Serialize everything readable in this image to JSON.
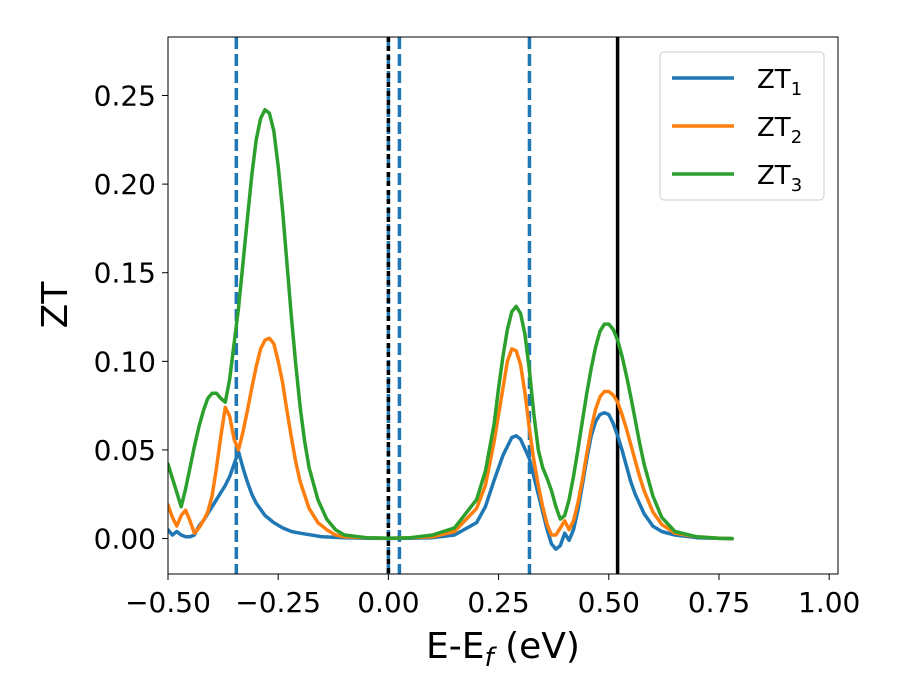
{
  "chart_data": {
    "type": "line",
    "title": "",
    "xlabel": "E-E",
    "xlabel_sub": "f",
    "xlabel_unit": " (eV)",
    "ylabel": "ZT",
    "xlim": [
      -0.5,
      1.02
    ],
    "ylim": [
      -0.02,
      0.283
    ],
    "grid": false,
    "legend_position": "top-right",
    "xticks": [
      -0.5,
      -0.25,
      0.0,
      0.25,
      0.5,
      0.75,
      1.0
    ],
    "xtick_labels": [
      "−0.50",
      "−0.25",
      "0.00",
      "0.25",
      "0.50",
      "0.75",
      "1.00"
    ],
    "yticks": [
      0.0,
      0.05,
      0.1,
      0.15,
      0.2,
      0.25
    ],
    "ytick_labels": [
      "0.00",
      "0.05",
      "0.10",
      "0.15",
      "0.20",
      "0.25"
    ],
    "series": [
      {
        "name": "ZT",
        "name_sub": "1",
        "color": "#1f77b4",
        "x": [
          -0.5,
          -0.49,
          -0.48,
          -0.47,
          -0.46,
          -0.45,
          -0.44,
          -0.43,
          -0.42,
          -0.41,
          -0.4,
          -0.39,
          -0.38,
          -0.37,
          -0.36,
          -0.35,
          -0.34,
          -0.33,
          -0.32,
          -0.31,
          -0.3,
          -0.28,
          -0.26,
          -0.24,
          -0.22,
          -0.2,
          -0.15,
          -0.1,
          -0.05,
          0.0,
          0.05,
          0.1,
          0.15,
          0.2,
          0.22,
          0.24,
          0.26,
          0.28,
          0.29,
          0.3,
          0.32,
          0.34,
          0.35,
          0.36,
          0.37,
          0.38,
          0.39,
          0.4,
          0.41,
          0.42,
          0.43,
          0.44,
          0.45,
          0.46,
          0.47,
          0.48,
          0.49,
          0.5,
          0.51,
          0.52,
          0.53,
          0.54,
          0.55,
          0.56,
          0.58,
          0.6,
          0.62,
          0.65,
          0.7,
          0.75,
          0.78
        ],
        "y": [
          0.005,
          0.002,
          0.004,
          0.002,
          0.001,
          0.001,
          0.002,
          0.007,
          0.01,
          0.014,
          0.018,
          0.022,
          0.026,
          0.03,
          0.035,
          0.042,
          0.049,
          0.04,
          0.032,
          0.025,
          0.02,
          0.013,
          0.009,
          0.006,
          0.004,
          0.003,
          0.001,
          0.0005,
          0.0002,
          0.0001,
          0.0002,
          0.0005,
          0.002,
          0.009,
          0.018,
          0.033,
          0.047,
          0.057,
          0.058,
          0.056,
          0.045,
          0.025,
          0.015,
          0.005,
          -0.003,
          -0.006,
          -0.004,
          0.003,
          -0.001,
          0.005,
          0.016,
          0.03,
          0.045,
          0.058,
          0.066,
          0.07,
          0.071,
          0.07,
          0.065,
          0.058,
          0.05,
          0.041,
          0.032,
          0.025,
          0.014,
          0.007,
          0.004,
          0.002,
          0.0005,
          0.0001,
          0.0
        ]
      },
      {
        "name": "ZT",
        "name_sub": "2",
        "color": "#ff7f0e",
        "x": [
          -0.5,
          -0.49,
          -0.48,
          -0.47,
          -0.46,
          -0.45,
          -0.44,
          -0.43,
          -0.42,
          -0.41,
          -0.4,
          -0.39,
          -0.38,
          -0.37,
          -0.36,
          -0.35,
          -0.34,
          -0.33,
          -0.32,
          -0.31,
          -0.3,
          -0.29,
          -0.28,
          -0.27,
          -0.26,
          -0.25,
          -0.24,
          -0.23,
          -0.22,
          -0.21,
          -0.2,
          -0.18,
          -0.16,
          -0.14,
          -0.12,
          -0.1,
          -0.05,
          0.0,
          0.05,
          0.1,
          0.15,
          0.2,
          0.22,
          0.24,
          0.26,
          0.27,
          0.28,
          0.29,
          0.3,
          0.31,
          0.32,
          0.33,
          0.34,
          0.35,
          0.36,
          0.37,
          0.38,
          0.39,
          0.4,
          0.41,
          0.42,
          0.43,
          0.44,
          0.45,
          0.46,
          0.47,
          0.48,
          0.49,
          0.5,
          0.51,
          0.52,
          0.53,
          0.54,
          0.55,
          0.56,
          0.57,
          0.58,
          0.6,
          0.62,
          0.65,
          0.7,
          0.75,
          0.78
        ],
        "y": [
          0.019,
          0.012,
          0.007,
          0.013,
          0.016,
          0.01,
          0.003,
          0.006,
          0.01,
          0.015,
          0.024,
          0.04,
          0.058,
          0.074,
          0.069,
          0.056,
          0.05,
          0.06,
          0.072,
          0.085,
          0.097,
          0.107,
          0.112,
          0.113,
          0.11,
          0.1,
          0.088,
          0.072,
          0.057,
          0.043,
          0.032,
          0.017,
          0.009,
          0.005,
          0.002,
          0.001,
          0.0004,
          0.0002,
          0.0004,
          0.001,
          0.004,
          0.017,
          0.03,
          0.055,
          0.085,
          0.1,
          0.107,
          0.106,
          0.098,
          0.082,
          0.062,
          0.044,
          0.03,
          0.018,
          0.008,
          0.002,
          0.002,
          0.006,
          0.01,
          0.005,
          0.01,
          0.02,
          0.033,
          0.048,
          0.062,
          0.073,
          0.08,
          0.083,
          0.083,
          0.081,
          0.077,
          0.07,
          0.062,
          0.053,
          0.044,
          0.035,
          0.027,
          0.015,
          0.008,
          0.003,
          0.001,
          0.0002,
          0.0
        ]
      },
      {
        "name": "ZT",
        "name_sub": "3",
        "color": "#2ca02c",
        "x": [
          -0.5,
          -0.49,
          -0.48,
          -0.47,
          -0.46,
          -0.45,
          -0.44,
          -0.43,
          -0.42,
          -0.41,
          -0.4,
          -0.39,
          -0.38,
          -0.37,
          -0.36,
          -0.35,
          -0.34,
          -0.33,
          -0.32,
          -0.31,
          -0.3,
          -0.29,
          -0.28,
          -0.27,
          -0.26,
          -0.25,
          -0.24,
          -0.23,
          -0.22,
          -0.21,
          -0.2,
          -0.19,
          -0.18,
          -0.16,
          -0.14,
          -0.12,
          -0.1,
          -0.05,
          0.0,
          0.05,
          0.1,
          0.15,
          0.2,
          0.22,
          0.24,
          0.25,
          0.26,
          0.27,
          0.28,
          0.29,
          0.3,
          0.31,
          0.32,
          0.33,
          0.34,
          0.35,
          0.36,
          0.37,
          0.38,
          0.39,
          0.4,
          0.41,
          0.42,
          0.43,
          0.44,
          0.45,
          0.46,
          0.47,
          0.48,
          0.49,
          0.5,
          0.51,
          0.52,
          0.53,
          0.54,
          0.55,
          0.56,
          0.57,
          0.58,
          0.6,
          0.62,
          0.65,
          0.7,
          0.75,
          0.78
        ],
        "y": [
          0.042,
          0.034,
          0.026,
          0.018,
          0.028,
          0.04,
          0.052,
          0.063,
          0.072,
          0.079,
          0.082,
          0.082,
          0.079,
          0.077,
          0.09,
          0.11,
          0.13,
          0.155,
          0.18,
          0.205,
          0.225,
          0.237,
          0.242,
          0.24,
          0.23,
          0.21,
          0.185,
          0.155,
          0.125,
          0.098,
          0.074,
          0.055,
          0.04,
          0.022,
          0.011,
          0.005,
          0.002,
          0.0005,
          0.0002,
          0.0005,
          0.002,
          0.006,
          0.022,
          0.038,
          0.065,
          0.085,
          0.103,
          0.118,
          0.128,
          0.131,
          0.127,
          0.115,
          0.095,
          0.07,
          0.05,
          0.04,
          0.034,
          0.027,
          0.018,
          0.011,
          0.013,
          0.022,
          0.035,
          0.05,
          0.066,
          0.082,
          0.096,
          0.108,
          0.117,
          0.121,
          0.121,
          0.118,
          0.112,
          0.103,
          0.092,
          0.08,
          0.067,
          0.054,
          0.042,
          0.024,
          0.012,
          0.004,
          0.001,
          0.0002,
          0.0
        ]
      }
    ],
    "vlines": [
      {
        "x": -0.345,
        "color": "#1f77b4",
        "style": "dashed"
      },
      {
        "x": 0.0,
        "color": "#1f77b4",
        "style": "dashed"
      },
      {
        "x": 0.025,
        "color": "#1f77b4",
        "style": "dashed"
      },
      {
        "x": 0.32,
        "color": "#1f77b4",
        "style": "dashed"
      },
      {
        "x": 0.0,
        "color": "#000000",
        "style": "dotted"
      },
      {
        "x": 0.52,
        "color": "#000000",
        "style": "solid"
      }
    ]
  }
}
